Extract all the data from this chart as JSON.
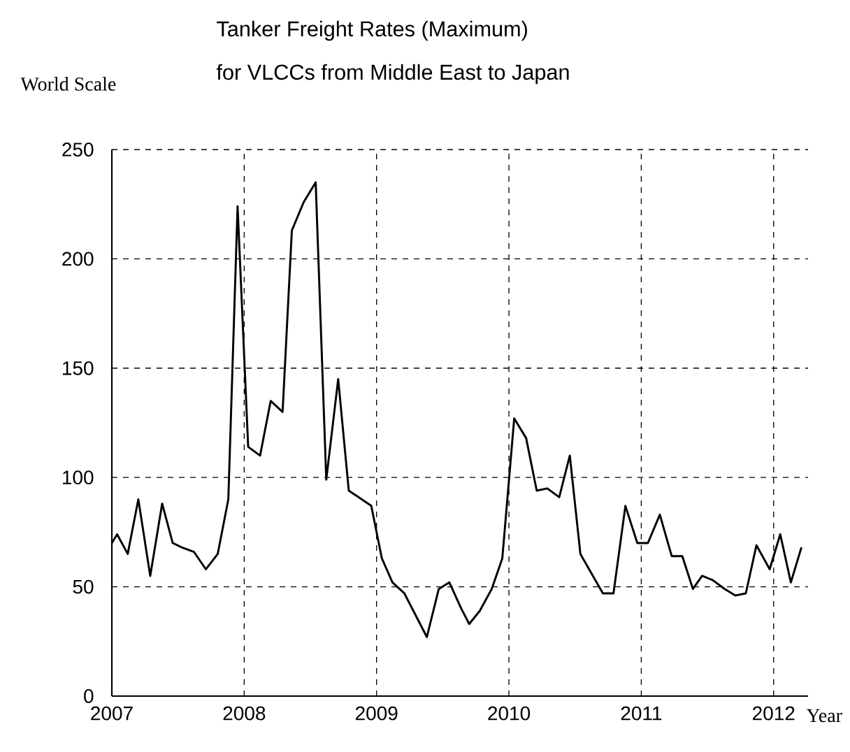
{
  "chart_data": {
    "type": "line",
    "title": "Tanker Freight Rates (Maximum)",
    "subtitle": "for VLCCs from Middle East to Japan",
    "ylabel": "World Scale",
    "xlabel": "Year",
    "x": [
      2007.0,
      2007.04,
      2007.12,
      2007.2,
      2007.29,
      2007.38,
      2007.46,
      2007.53,
      2007.62,
      2007.71,
      2007.8,
      2007.88,
      2007.95,
      2008.03,
      2008.12,
      2008.2,
      2008.29,
      2008.36,
      2008.45,
      2008.54,
      2008.62,
      2008.71,
      2008.79,
      2008.96,
      2009.04,
      2009.12,
      2009.21,
      2009.38,
      2009.47,
      2009.55,
      2009.64,
      2009.7,
      2009.78,
      2009.87,
      2009.95,
      2010.04,
      2010.13,
      2010.21,
      2010.29,
      2010.38,
      2010.46,
      2010.54,
      2010.71,
      2010.79,
      2010.88,
      2010.97,
      2011.05,
      2011.14,
      2011.23,
      2011.31,
      2011.39,
      2011.46,
      2011.54,
      2011.63,
      2011.71,
      2011.79,
      2011.87,
      2011.97,
      2012.05,
      2012.13,
      2012.21
    ],
    "values": [
      70,
      74,
      65,
      90,
      55,
      88,
      70,
      68,
      66,
      58,
      65,
      90,
      224,
      114,
      110,
      135,
      130,
      213,
      226,
      235,
      99,
      145,
      94,
      87,
      63,
      52,
      47,
      27,
      49,
      52,
      40,
      33,
      39,
      49,
      63,
      127,
      118,
      94,
      95,
      91,
      110,
      65,
      47,
      47,
      87,
      70,
      70,
      83,
      64,
      64,
      49,
      55,
      53,
      49,
      46,
      47,
      69,
      58,
      74,
      52,
      68
    ],
    "color": "#000000",
    "xlim": [
      2007,
      2012.26
    ],
    "xticks": [
      2007,
      2008,
      2009,
      2010,
      2011,
      2012
    ],
    "ylim": [
      0,
      250
    ],
    "yticks": [
      0,
      50,
      100,
      150,
      200,
      250
    ],
    "grid": true
  }
}
